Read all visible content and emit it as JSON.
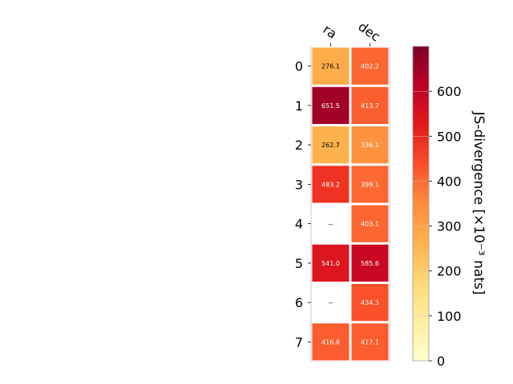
{
  "chart_data": {
    "type": "heatmap",
    "columns": [
      "ra",
      "dec"
    ],
    "rows": [
      "0",
      "1",
      "2",
      "3",
      "4",
      "5",
      "6",
      "7"
    ],
    "values": [
      [
        276.1,
        402.2
      ],
      [
        651.5,
        413.7
      ],
      [
        262.7,
        336.1
      ],
      [
        483.2,
        399.1
      ],
      [
        null,
        403.1
      ],
      [
        541.0,
        585.6
      ],
      [
        null,
        434.3
      ],
      [
        416.8,
        417.1
      ]
    ],
    "cell_labels": [
      [
        "276.1",
        "402.2"
      ],
      [
        "651.5",
        "413.7"
      ],
      [
        "262.7",
        "336.1"
      ],
      [
        "483.2",
        "399.1"
      ],
      [
        "--",
        "403.1"
      ],
      [
        "541.0",
        "585.6"
      ],
      [
        "--",
        "434.3"
      ],
      [
        "416.8",
        "417.1"
      ]
    ],
    "colorbar": {
      "label": "JS-divergence [×10⁻³ nats]",
      "range": [
        0,
        700
      ],
      "ticks": [
        0,
        100,
        200,
        300,
        400,
        500,
        600
      ],
      "tick_labels": [
        "0",
        "100",
        "200",
        "300",
        "400",
        "500",
        "600"
      ],
      "colormap": "YlOrRd"
    },
    "grid": false
  }
}
